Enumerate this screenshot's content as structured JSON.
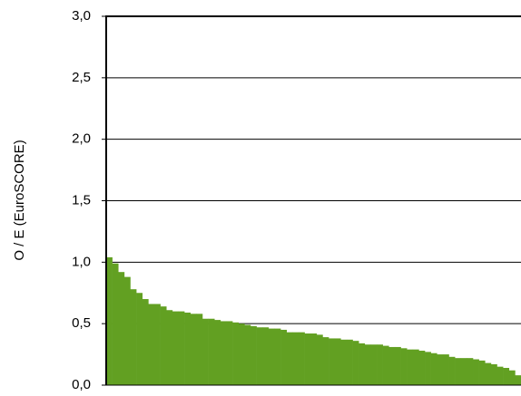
{
  "chart_data": {
    "type": "bar",
    "y_label": "O / E (EuroSCORE)",
    "categories": [
      null,
      null,
      null,
      null,
      null,
      null,
      null,
      null,
      null,
      null,
      null,
      null,
      null,
      null,
      null,
      null,
      null,
      null,
      null,
      null,
      null,
      null,
      null,
      null,
      null,
      null,
      null,
      null,
      null,
      null,
      null,
      null,
      null,
      null,
      null,
      null,
      null,
      null,
      null,
      null,
      null,
      null,
      null,
      null,
      null,
      null,
      null,
      null,
      null,
      null,
      null,
      null,
      null,
      null,
      null,
      null,
      null,
      null,
      null,
      null,
      null,
      null,
      null,
      null,
      null,
      null,
      null,
      null,
      null
    ],
    "values": [
      1.04,
      0.99,
      0.92,
      0.88,
      0.78,
      0.75,
      0.7,
      0.66,
      0.66,
      0.64,
      0.61,
      0.6,
      0.6,
      0.59,
      0.58,
      0.58,
      0.54,
      0.54,
      0.53,
      0.52,
      0.52,
      0.51,
      0.5,
      0.49,
      0.48,
      0.47,
      0.47,
      0.46,
      0.46,
      0.45,
      0.43,
      0.43,
      0.43,
      0.42,
      0.42,
      0.41,
      0.39,
      0.38,
      0.38,
      0.37,
      0.37,
      0.36,
      0.34,
      0.33,
      0.33,
      0.33,
      0.32,
      0.31,
      0.31,
      0.3,
      0.29,
      0.29,
      0.28,
      0.27,
      0.26,
      0.25,
      0.25,
      0.23,
      0.22,
      0.22,
      0.22,
      0.21,
      0.2,
      0.18,
      0.17,
      0.15,
      0.14,
      0.12,
      0.08
    ],
    "color": "#62a022",
    "ylim": [
      0,
      3
    ],
    "yticks": [
      {
        "value": 0,
        "label": "0,0"
      },
      {
        "value": 0.5,
        "label": "0,5"
      },
      {
        "value": 1,
        "label": "1,0"
      },
      {
        "value": 1.5,
        "label": "1,5"
      },
      {
        "value": 2,
        "label": "2,0"
      },
      {
        "value": 2.5,
        "label": "2,5"
      },
      {
        "value": 3,
        "label": "3,0"
      }
    ],
    "grid": true
  }
}
